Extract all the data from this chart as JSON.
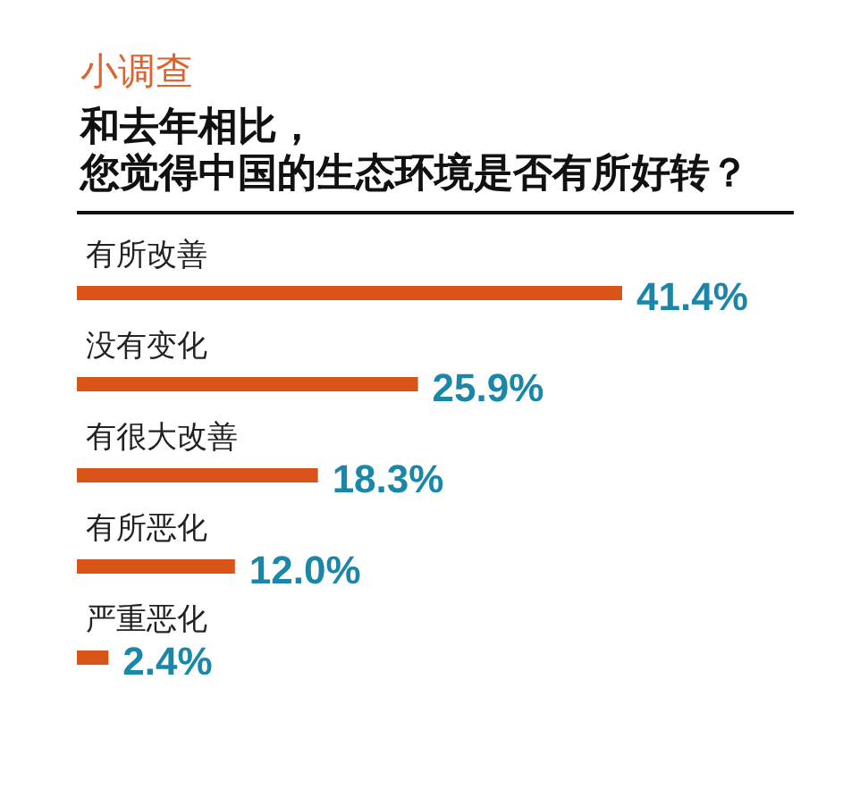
{
  "chart_data": {
    "type": "bar",
    "orientation": "horizontal",
    "title": "小调查",
    "subtitle": "和去年相比，您觉得中国的生态环境是否有所好转？",
    "categories": [
      "有所改善",
      "没有变化",
      "有很大改善",
      "有所恶化",
      "严重恶化"
    ],
    "values": [
      41.4,
      25.9,
      18.3,
      12.0,
      2.4
    ],
    "value_labels": [
      "41.4%",
      "25.9%",
      "18.3%",
      "12.0%",
      "2.4%"
    ],
    "color": "#d95418"
  }
}
